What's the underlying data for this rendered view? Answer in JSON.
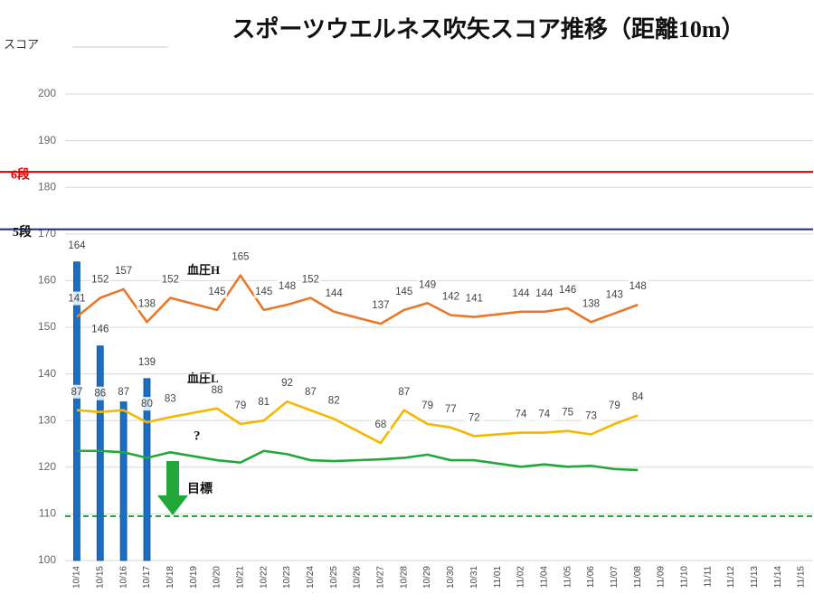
{
  "chart_data": {
    "type": "combo",
    "title": "スポーツウエルネス吹矢スコア推移（距離10m）",
    "y_label": "スコア",
    "categories": [
      "10/14",
      "10/15",
      "10/16",
      "10/17",
      "10/18",
      "10/19",
      "10/20",
      "10/21",
      "10/22",
      "10/23",
      "10/24",
      "10/25",
      "10/26",
      "10/27",
      "10/28",
      "10/29",
      "10/30",
      "10/31",
      "11/01",
      "11/02",
      "11/04",
      "11/05",
      "11/06",
      "11/07",
      "11/08",
      "11/09",
      "11/10",
      "11/11",
      "11/12",
      "11/13",
      "11/14",
      "11/15"
    ],
    "ylim": [
      100,
      200
    ],
    "yticks": [
      100,
      110,
      120,
      130,
      140,
      150,
      160,
      170,
      180,
      190,
      200
    ],
    "y2lim": [
      0,
      270
    ],
    "grid": true,
    "connect_gaps": true,
    "series": [
      {
        "type": "bar",
        "color": "#1a6fc4",
        "values": [
          164,
          146,
          134,
          139,
          null,
          null,
          null,
          null,
          null,
          null,
          null,
          null,
          null,
          null,
          null,
          null,
          null,
          null,
          null,
          null,
          null,
          null,
          null,
          null,
          null,
          null,
          null,
          null,
          null,
          null,
          null,
          null
        ],
        "value_labels": [
          "164",
          "146",
          null,
          "139",
          null,
          null,
          null,
          null,
          null,
          null,
          null,
          null,
          null,
          null,
          null,
          null,
          null,
          null,
          null,
          null,
          null,
          null,
          null,
          null,
          null,
          null,
          null,
          null,
          null,
          null,
          null,
          null
        ]
      },
      {
        "type": "line",
        "name": "血圧H",
        "axis": "y2",
        "color": "#e8792b",
        "values": [
          141,
          152,
          157,
          138,
          152,
          null,
          145,
          165,
          145,
          148,
          152,
          144,
          null,
          137,
          145,
          149,
          142,
          141,
          null,
          144,
          144,
          146,
          138,
          143,
          148,
          null,
          null,
          null,
          null,
          null,
          null,
          null
        ]
      },
      {
        "type": "line",
        "name": "血圧L",
        "axis": "y2",
        "color": "#f4b800",
        "values": [
          87,
          86,
          87,
          80,
          83,
          null,
          88,
          79,
          81,
          92,
          87,
          82,
          null,
          68,
          87,
          79,
          77,
          72,
          null,
          74,
          74,
          75,
          73,
          79,
          84,
          null,
          null,
          null,
          null,
          null,
          null,
          null
        ]
      },
      {
        "type": "line",
        "color": "#22a83a",
        "values": [
          123.5,
          123.5,
          123.2,
          122,
          123.2,
          null,
          121.5,
          121,
          123.5,
          122.8,
          121.5,
          121.3,
          null,
          121.7,
          122,
          122.7,
          121.5,
          121.5,
          null,
          120.1,
          120.6,
          120.1,
          120.3,
          119.6,
          119.4,
          null,
          null,
          null,
          null,
          null,
          null,
          null
        ]
      }
    ],
    "reference_lines": [
      {
        "label": "6段",
        "value": 183.3,
        "color": "#e00000",
        "dash": false
      },
      {
        "label": "5段",
        "value": 171,
        "color": "#1a2a80",
        "dash": false
      },
      {
        "label": "目標",
        "value": 109.5,
        "color": "#22a83a",
        "dash": true
      }
    ],
    "annotations": [
      "?"
    ]
  }
}
